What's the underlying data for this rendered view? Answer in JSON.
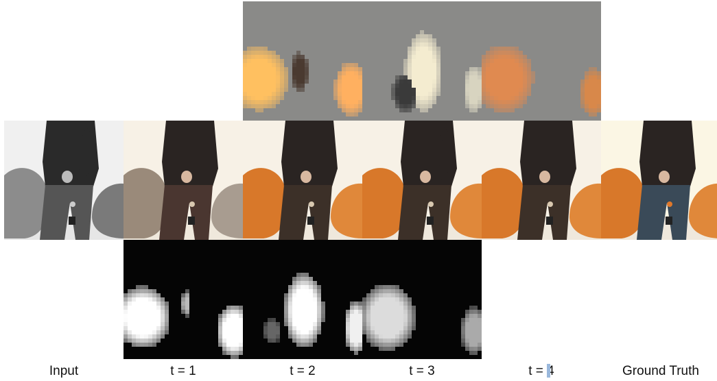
{
  "columns": [
    {
      "label": "Input",
      "mode": "gray"
    },
    {
      "label": "t = 1",
      "mode": "muted"
    },
    {
      "label": "t = 2",
      "mode": "color"
    },
    {
      "label": "t = 3",
      "mode": "color"
    },
    {
      "label": "t = 4",
      "mode": "color"
    },
    {
      "label": "Ground Truth",
      "mode": "truth"
    }
  ],
  "colors": {
    "top_background": "#8a8a88",
    "mask_background": "#050505",
    "chair_orange": "#d8782a",
    "chair_gray": "#9a9a98",
    "wall": "#f7f1e6",
    "jacket": "#2a2422",
    "jeans": "#3c3028",
    "jeans_truth": "#3a4a58",
    "cursor": "#9ab8dc"
  }
}
